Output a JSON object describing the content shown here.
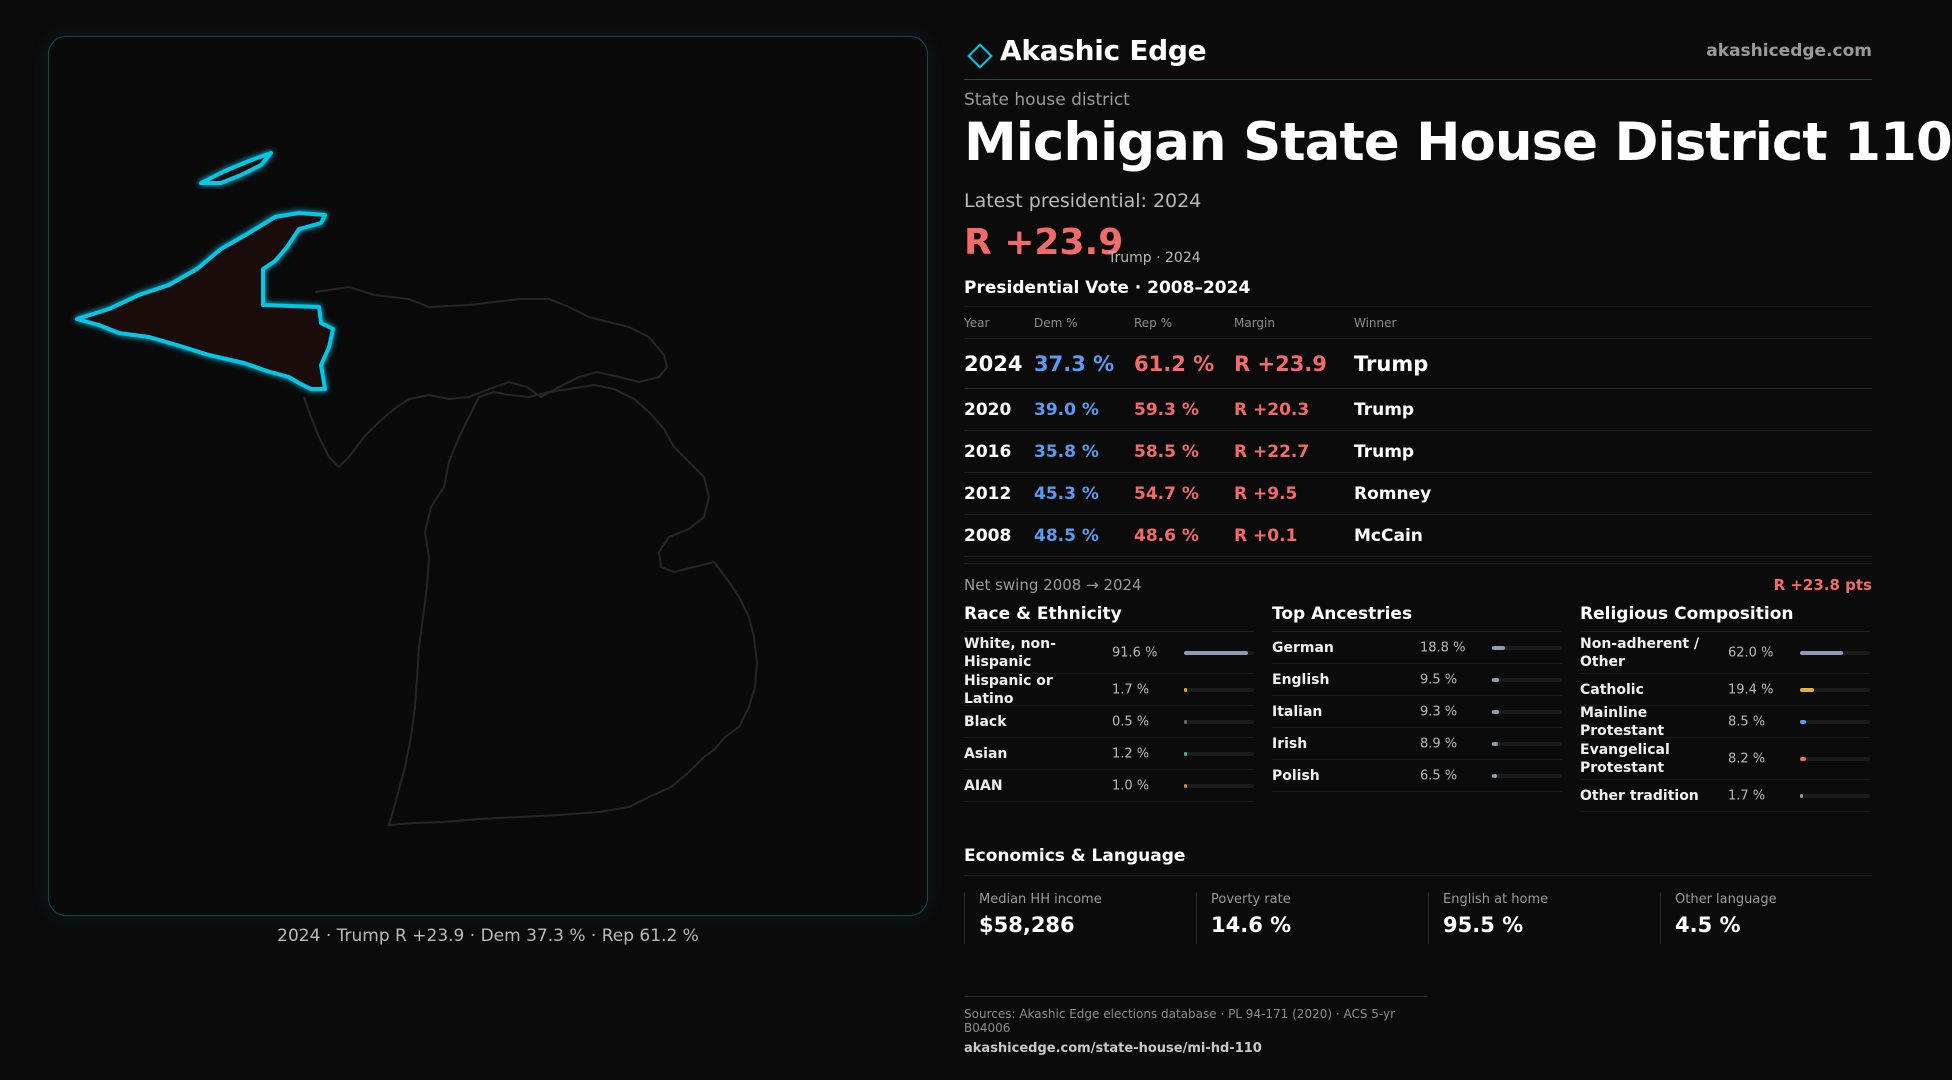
{
  "brand": {
    "name": "Akashic Edge",
    "url": "akashicedge.com",
    "icon": "diamond-icon",
    "accent": "#00c8e6"
  },
  "header": {
    "kicker": "State house district",
    "title": "Michigan State House District 110",
    "latest_label": "Latest presidential: 2024",
    "margin": "R +23.9",
    "margin_sub": "Trump · 2024"
  },
  "map": {
    "caption": "2024 · Trump R +23.9 · Dem 37.3 % · Rep 61.2 %",
    "highlight_color": "#00c8e6"
  },
  "votes": {
    "title": "Presidential Vote · 2008–2024",
    "headers": {
      "year": "Year",
      "dem": "Dem %",
      "rep": "Rep %",
      "margin": "Margin",
      "winner": "Winner"
    },
    "rows": [
      {
        "year": "2024",
        "dem": "37.3 %",
        "rep": "61.2 %",
        "margin": "R +23.9",
        "winner": "Trump"
      },
      {
        "year": "2020",
        "dem": "39.0 %",
        "rep": "59.3 %",
        "margin": "R +20.3",
        "winner": "Trump"
      },
      {
        "year": "2016",
        "dem": "35.8 %",
        "rep": "58.5 %",
        "margin": "R +22.7",
        "winner": "Trump"
      },
      {
        "year": "2012",
        "dem": "45.3 %",
        "rep": "54.7 %",
        "margin": "R +9.5",
        "winner": "Romney"
      },
      {
        "year": "2008",
        "dem": "48.5 %",
        "rep": "48.6 %",
        "margin": "R +0.1",
        "winner": "McCain"
      }
    ],
    "swing_label": "Net swing 2008 → 2024",
    "swing_value": "R +23.8 pts"
  },
  "race": {
    "title": "Race & Ethnicity",
    "items": [
      {
        "label": "White, non-Hispanic",
        "pct": "91.6 %",
        "value": 91.6,
        "color": "#8e9bb0"
      },
      {
        "label": "Hispanic or Latino",
        "pct": "1.7 %",
        "value": 1.7,
        "color": "#e0a93a"
      },
      {
        "label": "Black",
        "pct": "0.5 %",
        "value": 0.5,
        "color": "#6a6a6a"
      },
      {
        "label": "Asian",
        "pct": "1.2 %",
        "value": 1.2,
        "color": "#3fb58a"
      },
      {
        "label": "AIAN",
        "pct": "1.0 %",
        "value": 1.0,
        "color": "#d9823b"
      }
    ]
  },
  "ancestry": {
    "title": "Top Ancestries",
    "items": [
      {
        "label": "German",
        "pct": "18.8 %",
        "value": 18.8,
        "color": "#8e9bb0"
      },
      {
        "label": "English",
        "pct": "9.5 %",
        "value": 9.5,
        "color": "#8e9bb0"
      },
      {
        "label": "Italian",
        "pct": "9.3 %",
        "value": 9.3,
        "color": "#8e9bb0"
      },
      {
        "label": "Irish",
        "pct": "8.9 %",
        "value": 8.9,
        "color": "#8e9bb0"
      },
      {
        "label": "Polish",
        "pct": "6.5 %",
        "value": 6.5,
        "color": "#8e9bb0"
      }
    ]
  },
  "religion": {
    "title": "Religious Composition",
    "items": [
      {
        "label": "Non-adherent / Other",
        "pct": "62.0 %",
        "value": 62.0,
        "color": "#8e9bb0"
      },
      {
        "label": "Catholic",
        "pct": "19.4 %",
        "value": 19.4,
        "color": "#e0b43a"
      },
      {
        "label": "Mainline Protestant",
        "pct": "8.5 %",
        "value": 8.5,
        "color": "#5b9bf0"
      },
      {
        "label": "Evangelical Protestant",
        "pct": "8.2 %",
        "value": 8.2,
        "color": "#f26b6b"
      },
      {
        "label": "Other tradition",
        "pct": "1.7 %",
        "value": 1.7,
        "color": "#8e9bb0"
      }
    ]
  },
  "economics": {
    "title": "Economics & Language",
    "items": [
      {
        "label": "Median HH income",
        "value": "$58,286"
      },
      {
        "label": "Poverty rate",
        "value": "14.6 %"
      },
      {
        "label": "English at home",
        "value": "95.5 %"
      },
      {
        "label": "Other language",
        "value": "4.5 %"
      }
    ]
  },
  "footer": {
    "sources": "Sources: Akashic Edge elections database · PL 94-171 (2020) · ACS 5-yr B04006",
    "url": "akashicedge.com/state-house/mi-hd-110"
  }
}
